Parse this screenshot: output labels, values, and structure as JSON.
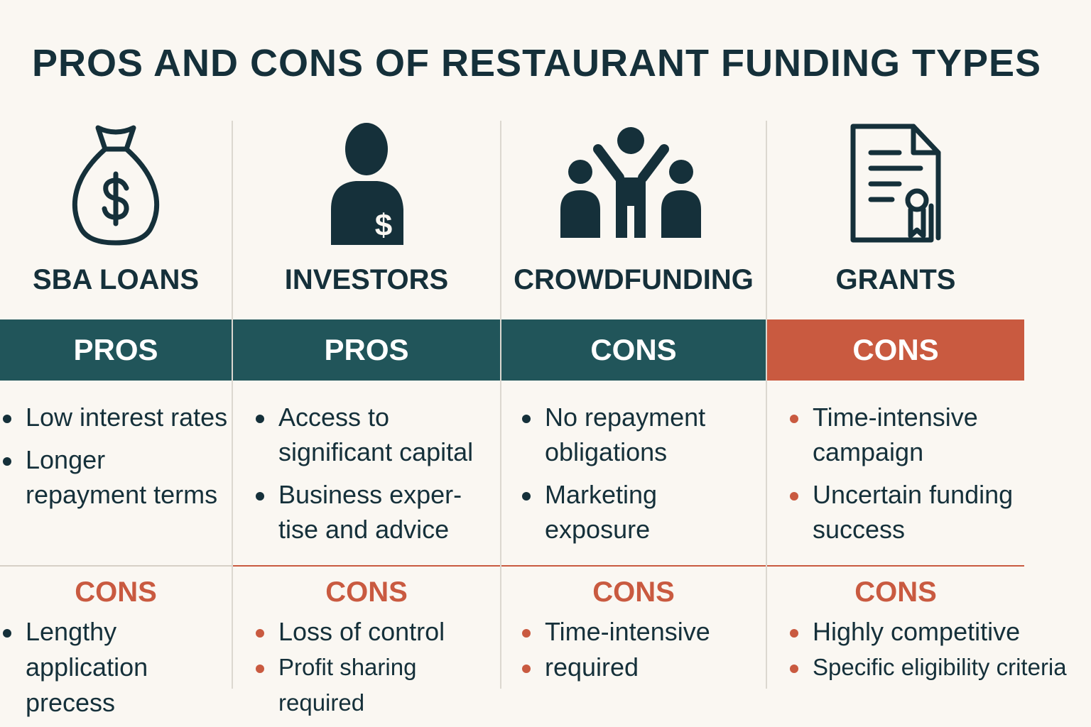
{
  "title": "PROS AND CONS OF RESTAURANT FUNDING TYPES",
  "colors": {
    "teal": "#21555a",
    "orange": "#c95a40",
    "text": "#15303a",
    "background": "#faf7f2"
  },
  "columns": [
    {
      "name": "SBA LOANS",
      "icon": "money-bag-icon",
      "band_label": "PROS",
      "band_color": "#21555a",
      "top_items": [
        "Low interest rates",
        "Longer repayment terms"
      ],
      "top_bullet_color": "#15303a",
      "cons_label": "CONS",
      "cons_items": [
        "Lengthy application precess"
      ],
      "cons_bullet_color": "#15303a"
    },
    {
      "name": "INVESTORS",
      "icon": "investor-person-icon",
      "band_label": "PROS",
      "band_color": "#21555a",
      "top_items": [
        "Access to significant capital",
        "Business exper-tise and advice"
      ],
      "top_bullet_color": "#15303a",
      "cons_label": "CONS",
      "cons_items": [
        "Loss of control",
        "Profit sharing required"
      ],
      "cons_bullet_color": "#c95a40"
    },
    {
      "name": "CROWDFUNDING",
      "icon": "crowd-people-icon",
      "band_label": "CONS",
      "band_color": "#21555a",
      "top_items": [
        "No repayment obligations",
        "Marketing exposure"
      ],
      "top_bullet_color": "#15303a",
      "cons_label": "CONS",
      "cons_items": [
        "Time-intensive",
        "required"
      ],
      "cons_bullet_color": "#c95a40"
    },
    {
      "name": "GRANTS",
      "icon": "certificate-document-icon",
      "band_label": "CONS",
      "band_color": "#c95a40",
      "top_items": [
        "Time-intensive campaign",
        "Uncertain funding success"
      ],
      "top_bullet_color": "#c95a40",
      "cons_label": "CONS",
      "cons_items": [
        "Highly competitive",
        "Specific eligibility criteria"
      ],
      "cons_bullet_color": "#c95a40"
    }
  ]
}
